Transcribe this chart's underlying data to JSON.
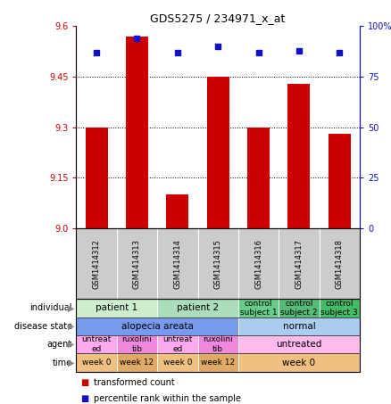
{
  "title": "GDS5275 / 234971_x_at",
  "samples": [
    "GSM1414312",
    "GSM1414313",
    "GSM1414314",
    "GSM1414315",
    "GSM1414316",
    "GSM1414317",
    "GSM1414318"
  ],
  "transformed_count": [
    9.3,
    9.57,
    9.1,
    9.45,
    9.3,
    9.43,
    9.28
  ],
  "percentile_rank": [
    87,
    94,
    87,
    90,
    87,
    88,
    87
  ],
  "ylim_left": [
    9.0,
    9.6
  ],
  "yticks_left": [
    9.0,
    9.15,
    9.3,
    9.45,
    9.6
  ],
  "ylim_right": [
    0,
    100
  ],
  "yticks_right": [
    0,
    25,
    50,
    75,
    100
  ],
  "bar_color": "#cc0000",
  "dot_color": "#1111cc",
  "individual_cells": [
    {
      "text": "patient 1",
      "span": 2,
      "color": "#cceecc"
    },
    {
      "text": "patient 2",
      "span": 2,
      "color": "#aaddbb"
    },
    {
      "text": "control\nsubject 1",
      "span": 1,
      "color": "#66cc88"
    },
    {
      "text": "control\nsubject 2",
      "span": 1,
      "color": "#55bb77"
    },
    {
      "text": "control\nsubject 3",
      "span": 1,
      "color": "#44bb66"
    }
  ],
  "disease_cells": [
    {
      "text": "alopecia areata",
      "span": 4,
      "color": "#7799ee"
    },
    {
      "text": "normal",
      "span": 3,
      "color": "#aaccee"
    }
  ],
  "agent_cells": [
    {
      "text": "untreat\ned",
      "span": 1,
      "color": "#ffaaee"
    },
    {
      "text": "ruxolini\ntib",
      "span": 1,
      "color": "#ee88dd"
    },
    {
      "text": "untreat\ned",
      "span": 1,
      "color": "#ffaaee"
    },
    {
      "text": "ruxolini\ntib",
      "span": 1,
      "color": "#ee88dd"
    },
    {
      "text": "untreated",
      "span": 3,
      "color": "#ffbbee"
    }
  ],
  "time_cells": [
    {
      "text": "week 0",
      "span": 1,
      "color": "#f0c080"
    },
    {
      "text": "week 12",
      "span": 1,
      "color": "#e0aa66"
    },
    {
      "text": "week 0",
      "span": 1,
      "color": "#f0c080"
    },
    {
      "text": "week 12",
      "span": 1,
      "color": "#e0aa66"
    },
    {
      "text": "week 0",
      "span": 3,
      "color": "#f0c080"
    }
  ],
  "row_labels": [
    "individual",
    "disease state",
    "agent",
    "time"
  ],
  "sample_bg": "#cccccc"
}
